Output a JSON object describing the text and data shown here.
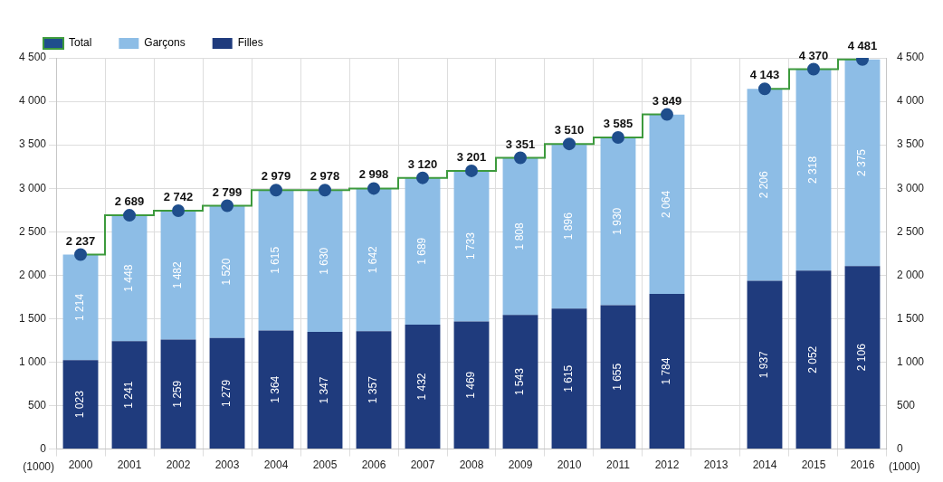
{
  "chart_data": {
    "type": "bar",
    "stacked": true,
    "ylabel": "(1000)",
    "y2label": "(1000)",
    "categories": [
      "2000",
      "2001",
      "2002",
      "2003",
      "2004",
      "2005",
      "2006",
      "2007",
      "2008",
      "2009",
      "2010",
      "2011",
      "2012",
      "2013",
      "2014",
      "2015",
      "2016"
    ],
    "series": [
      {
        "name": "Total",
        "type": "step",
        "color": "#3d9a3d",
        "marker": "circle",
        "values": [
          2237,
          2689,
          2742,
          2799,
          2979,
          2978,
          2998,
          3120,
          3201,
          3351,
          3510,
          3585,
          3849,
          null,
          4143,
          4370,
          4481
        ],
        "value_labels": [
          "2 237",
          "2 689",
          "2 742",
          "2 799",
          "2 979",
          "2 978",
          "2 998",
          "3 120",
          "3 201",
          "3 351",
          "3 510",
          "3 585",
          "3 849",
          null,
          "4 143",
          "4 370",
          "4 481"
        ]
      },
      {
        "name": "Filles",
        "color": "#1f3b7d",
        "values": [
          1023,
          1241,
          1259,
          1279,
          1364,
          1347,
          1357,
          1432,
          1469,
          1543,
          1615,
          1655,
          1784,
          null,
          1937,
          2052,
          2106
        ],
        "value_labels": [
          "1 023",
          "1 241",
          "1 259",
          "1 279",
          "1 364",
          "1 347",
          "1 357",
          "1 432",
          "1 469",
          "1 543",
          "1 615",
          "1 655",
          "1 784",
          null,
          "1 937",
          "2 052",
          "2 106"
        ]
      },
      {
        "name": "Garçons",
        "color": "#8dbde6",
        "values": [
          1214,
          1448,
          1482,
          1520,
          1615,
          1630,
          1642,
          1689,
          1733,
          1808,
          1896,
          1930,
          2064,
          null,
          2206,
          2318,
          2375
        ],
        "value_labels": [
          "1 214",
          "1 448",
          "1 482",
          "1 520",
          "1 615",
          "1 630",
          "1 642",
          "1 689",
          "1 733",
          "1 808",
          "1 896",
          "1 930",
          "2 064",
          null,
          "2 206",
          "2 318",
          "2 375"
        ]
      }
    ],
    "ylim": [
      0,
      4500
    ],
    "yticks": [
      0,
      500,
      {
        "value": 1000,
        "label": "1 000"
      },
      {
        "value": 1500,
        "label": "1 500"
      },
      {
        "value": 2000,
        "label": "2 000"
      },
      {
        "value": 2500,
        "label": "2 500"
      },
      {
        "value": 3000,
        "label": "3 000"
      },
      {
        "value": 3500,
        "label": "3 500"
      },
      {
        "value": 4000,
        "label": "4 000"
      },
      {
        "value": 4500,
        "label": "4 500"
      }
    ],
    "y2lim": [
      0,
      4500
    ],
    "y2ticks": [
      0,
      500,
      {
        "value": 1000,
        "label": "1 000"
      },
      {
        "value": 1500,
        "label": "1 500"
      },
      {
        "value": 2000,
        "label": "2 000"
      },
      {
        "value": 2500,
        "label": "2 500"
      },
      {
        "value": 3000,
        "label": "3 000"
      },
      {
        "value": 3500,
        "label": "3 500"
      },
      {
        "value": 4000,
        "label": "4 000"
      },
      {
        "value": 4500,
        "label": "4 500"
      }
    ],
    "grid": true,
    "legend": "top left"
  }
}
